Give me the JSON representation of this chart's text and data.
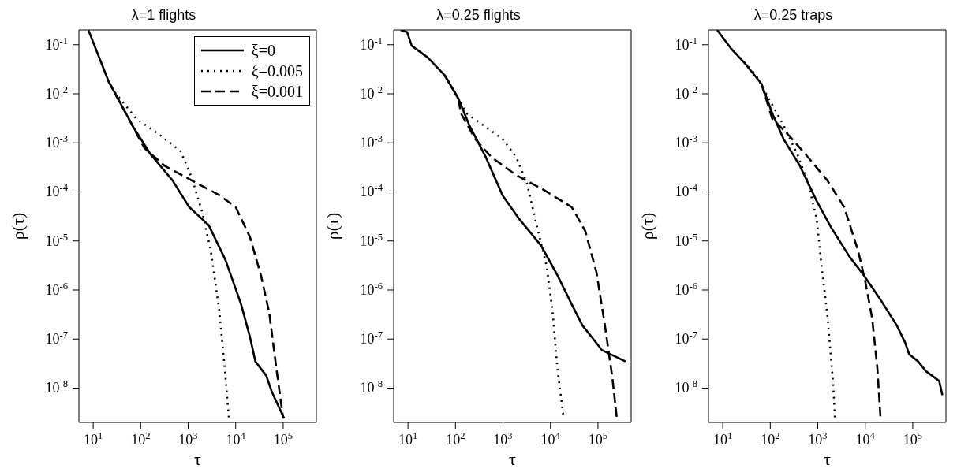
{
  "chart_data": [
    {
      "type": "line",
      "title": "λ=1 flights",
      "xlabel": "τ",
      "ylabel": "ρ(τ)",
      "log": "xy",
      "xlim": [
        5,
        500000
      ],
      "ylim": [
        2e-09,
        0.2
      ],
      "xticks": [
        {
          "value": 10,
          "label": "10$^{1}$"
        },
        {
          "value": 100,
          "label": "10$^{2}$"
        },
        {
          "value": 1000,
          "label": "10$^{3}$"
        },
        {
          "value": 10000,
          "label": "10$^{4}$"
        },
        {
          "value": 100000,
          "label": "10$^{5}$"
        }
      ],
      "yticks": [
        {
          "value": 1e-08,
          "label": "10$^{-8}$"
        },
        {
          "value": 1e-07,
          "label": "10$^{-7}$"
        },
        {
          "value": 1e-06,
          "label": "10$^{-6}$"
        },
        {
          "value": 1e-05,
          "label": "10$^{-5}$"
        },
        {
          "value": 0.0001,
          "label": "10$^{-4}$"
        },
        {
          "value": 0.001,
          "label": "10$^{-3}$"
        },
        {
          "value": 0.01,
          "label": "10$^{-2}$"
        },
        {
          "value": 0.1,
          "label": "10$^{-1}$"
        }
      ],
      "legend": "top right",
      "series": [
        {
          "name": "ξ=0",
          "color": "#000000",
          "line_style": "solid",
          "x": [
            7.9,
            21,
            72,
            160,
            470,
            1050,
            2700,
            6100,
            13000,
            20000,
            26000,
            44000,
            58000,
            105000
          ],
          "values": [
            0.2,
            0.018,
            0.002,
            0.00059,
            0.00017,
            4.9e-05,
            2.1e-05,
            4.1e-06,
            5.1e-07,
            1.1e-07,
            3.5e-08,
            1.8e-08,
            8.3e-09,
            2.4e-09
          ]
        },
        {
          "name": "ξ=0.005",
          "color": "#000000",
          "line_style": "dotted",
          "x": [
            21,
            28,
            81,
            240,
            690,
            1200,
            2000,
            3000,
            4500,
            5900,
            7200
          ],
          "values": [
            0.018,
            0.011,
            0.0031,
            0.0015,
            0.00068,
            0.00019,
            3.7e-05,
            6.2e-06,
            3.9e-07,
            2.5e-08,
            2.4e-09
          ]
        },
        {
          "name": "ξ=0.001",
          "color": "#000000",
          "line_style": "dashed",
          "x": [
            21,
            63,
            120,
            320,
            1200,
            4600,
            10000,
            20000,
            34000,
            51000,
            72000,
            100000
          ],
          "values": [
            0.018,
            0.0025,
            0.00078,
            0.00034,
            0.00017,
            8.5e-05,
            4.9e-05,
            1.2e-05,
            2e-06,
            3.4e-07,
            2.5e-08,
            2.4e-09
          ]
        }
      ]
    },
    {
      "type": "line",
      "title": "λ=0.25 flights",
      "xlabel": "τ",
      "ylabel": "ρ(τ)",
      "log": "xy",
      "xlim": [
        5,
        500000
      ],
      "ylim": [
        2e-09,
        0.2
      ],
      "xticks": [
        {
          "value": 10,
          "label": "10$^{1}$"
        },
        {
          "value": 100,
          "label": "10$^{2}$"
        },
        {
          "value": 1000,
          "label": "10$^{3}$"
        },
        {
          "value": 10000,
          "label": "10$^{4}$"
        },
        {
          "value": 100000,
          "label": "10$^{5}$"
        }
      ],
      "yticks": [
        {
          "value": 1e-08,
          "label": "10$^{-8}$"
        },
        {
          "value": 1e-07,
          "label": "10$^{-7}$"
        },
        {
          "value": 1e-06,
          "label": "10$^{-6}$"
        },
        {
          "value": 1e-05,
          "label": "10$^{-5}$"
        },
        {
          "value": 0.0001,
          "label": "10$^{-4}$"
        },
        {
          "value": 0.001,
          "label": "10$^{-3}$"
        },
        {
          "value": 0.01,
          "label": "10$^{-2}$"
        },
        {
          "value": 0.1,
          "label": "10$^{-1}$"
        }
      ],
      "series": [
        {
          "color": "#000000",
          "line_style": "solid",
          "x": [
            7,
            9.6,
            12,
            26,
            59,
            115,
            195,
            435,
            980,
            2200,
            6300,
            14000,
            28000,
            47000,
            81000,
            120000,
            380000
          ],
          "values": [
            0.2,
            0.18,
            0.095,
            0.055,
            0.024,
            0.008,
            0.0023,
            0.00051,
            8.5e-05,
            2.8e-05,
            8.1e-06,
            2e-06,
            5.1e-07,
            1.9e-07,
            9.8e-08,
            6e-08,
            3.5e-08
          ]
        },
        {
          "color": "#000000",
          "line_style": "dotted",
          "x": [
            59,
            76,
            170,
            380,
            980,
            1900,
            3200,
            4900,
            8300,
            11000,
            14000,
            19000
          ],
          "values": [
            0.024,
            0.016,
            0.004,
            0.0023,
            0.0012,
            0.00051,
            0.00015,
            2.5e-05,
            3.1e-06,
            3.9e-07,
            2.5e-08,
            2.4e-09
          ]
        },
        {
          "color": "#000000",
          "line_style": "dashed",
          "x": [
            59,
            115,
            130,
            260,
            570,
            1900,
            7200,
            28000,
            54000,
            93000,
            140000,
            200000,
            250000
          ],
          "values": [
            0.024,
            0.008,
            0.004,
            0.0012,
            0.00051,
            0.00022,
            0.00011,
            4.9e-05,
            1.6e-05,
            2.3e-06,
            1.9e-07,
            1.7e-08,
            2.4e-09
          ]
        }
      ]
    },
    {
      "type": "line",
      "title": "λ=0.25 traps",
      "xlabel": "τ",
      "ylabel": "ρ(τ)",
      "log": "xy",
      "xlim": [
        5,
        500000
      ],
      "ylim": [
        2e-09,
        0.2
      ],
      "xticks": [
        {
          "value": 10,
          "label": "10$^{1}$"
        },
        {
          "value": 100,
          "label": "10$^{2}$"
        },
        {
          "value": 1000,
          "label": "10$^{3}$"
        },
        {
          "value": 10000,
          "label": "10$^{4}$"
        },
        {
          "value": 100000,
          "label": "10$^{5}$"
        }
      ],
      "yticks": [
        {
          "value": 1e-08,
          "label": "10$^{-8}$"
        },
        {
          "value": 1e-07,
          "label": "10$^{-7}$"
        },
        {
          "value": 1e-06,
          "label": "10$^{-6}$"
        },
        {
          "value": 1e-05,
          "label": "10$^{-5}$"
        },
        {
          "value": 0.0001,
          "label": "10$^{-4}$"
        },
        {
          "value": 0.001,
          "label": "10$^{-3}$"
        },
        {
          "value": 0.01,
          "label": "10$^{-2}$"
        },
        {
          "value": 0.1,
          "label": "10$^{-1}$"
        }
      ],
      "series": [
        {
          "color": "#000000",
          "line_style": "solid",
          "x": [
            7.6,
            15,
            29,
            65,
            110,
            190,
            420,
            950,
            1900,
            4700,
            9300,
            20000,
            46000,
            69000,
            84000,
            130000,
            190000,
            360000,
            420000
          ],
          "values": [
            0.2,
            0.083,
            0.042,
            0.016,
            0.004,
            0.0012,
            0.00034,
            6.5e-05,
            1.9e-05,
            4.7e-06,
            2e-06,
            6.8e-07,
            1.9e-07,
            8.5e-08,
            4.9e-08,
            3.5e-08,
            2.2e-08,
            1.4e-08,
            7.2e-09
          ]
        },
        {
          "color": "#000000",
          "line_style": "dotted",
          "x": [
            15,
            26,
            50,
            86,
            190,
            370,
            630,
            950,
            1200,
            1600,
            2100,
            2300
          ],
          "values": [
            0.083,
            0.048,
            0.024,
            0.0091,
            0.0023,
            0.00059,
            0.00015,
            2.8e-05,
            3.1e-06,
            3e-07,
            1.3e-08,
            2.4e-09
          ]
        },
        {
          "color": "#000000",
          "line_style": "dashed",
          "x": [
            65,
            110,
            250,
            550,
            1600,
            3600,
            7100,
            10000,
            14000,
            18000,
            21000
          ],
          "values": [
            0.016,
            0.0031,
            0.0014,
            0.00059,
            0.00017,
            4.9e-05,
            6.2e-06,
            1.5e-06,
            2.6e-07,
            2.5e-08,
            2.4e-09
          ]
        }
      ]
    }
  ]
}
